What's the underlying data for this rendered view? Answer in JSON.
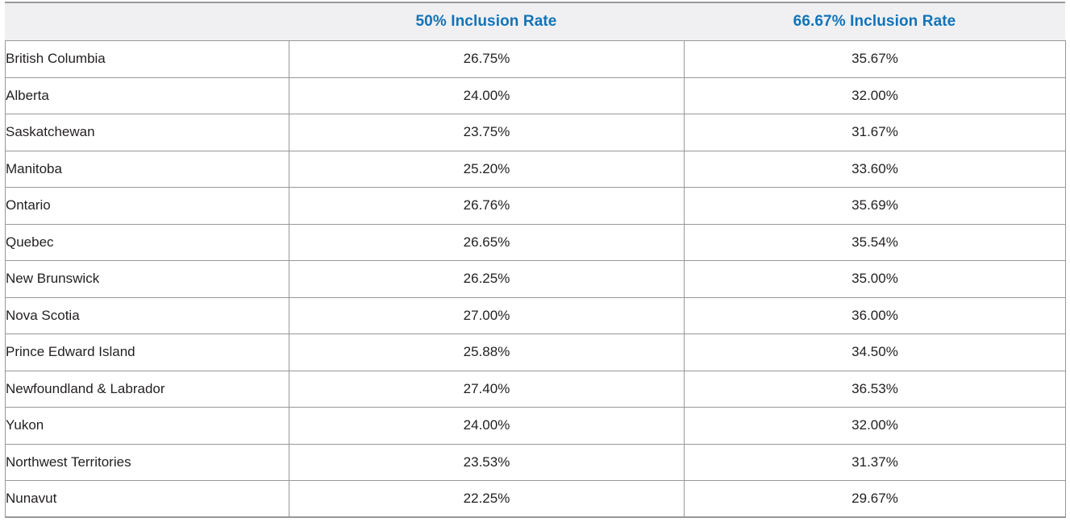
{
  "colors": {
    "accent_blue": "#1173b9",
    "border_gray": "#98989b",
    "header_background": "#f0f0f2",
    "body_text": "#231f20"
  },
  "table": {
    "header": {
      "region_label": "",
      "col_50": "50% Inclusion Rate",
      "col_6667": "66.67% Inclusion Rate"
    },
    "rows": [
      {
        "region": "British Columbia",
        "rate_50": "26.75%",
        "rate_6667": "35.67%"
      },
      {
        "region": "Alberta",
        "rate_50": "24.00%",
        "rate_6667": "32.00%"
      },
      {
        "region": "Saskatchewan",
        "rate_50": "23.75%",
        "rate_6667": "31.67%"
      },
      {
        "region": "Manitoba",
        "rate_50": "25.20%",
        "rate_6667": "33.60%"
      },
      {
        "region": "Ontario",
        "rate_50": "26.76%",
        "rate_6667": "35.69%"
      },
      {
        "region": "Quebec",
        "rate_50": "26.65%",
        "rate_6667": "35.54%"
      },
      {
        "region": "New Brunswick",
        "rate_50": "26.25%",
        "rate_6667": "35.00%"
      },
      {
        "region": "Nova Scotia",
        "rate_50": "27.00%",
        "rate_6667": "36.00%"
      },
      {
        "region": "Prince Edward Island",
        "rate_50": "25.88%",
        "rate_6667": "34.50%"
      },
      {
        "region": "Newfoundland & Labrador",
        "rate_50": "27.40%",
        "rate_6667": "36.53%"
      },
      {
        "region": "Yukon",
        "rate_50": "24.00%",
        "rate_6667": "32.00%"
      },
      {
        "region": "Northwest Territories",
        "rate_50": "23.53%",
        "rate_6667": "31.37%"
      },
      {
        "region": "Nunavut",
        "rate_50": "22.25%",
        "rate_6667": "29.67%"
      }
    ]
  },
  "chart_data": {
    "type": "table",
    "title": "",
    "categories": [
      "British Columbia",
      "Alberta",
      "Saskatchewan",
      "Manitoba",
      "Ontario",
      "Quebec",
      "New Brunswick",
      "Nova Scotia",
      "Prince Edward Island",
      "Newfoundland & Labrador",
      "Yukon",
      "Northwest Territories",
      "Nunavut"
    ],
    "series": [
      {
        "name": "50% Inclusion Rate",
        "values": [
          26.75,
          24.0,
          23.75,
          25.2,
          26.76,
          26.65,
          26.25,
          27.0,
          25.88,
          27.4,
          24.0,
          23.53,
          22.25
        ]
      },
      {
        "name": "66.67% Inclusion Rate",
        "values": [
          35.67,
          32.0,
          31.67,
          33.6,
          35.69,
          35.54,
          35.0,
          36.0,
          34.5,
          36.53,
          32.0,
          31.37,
          29.67
        ]
      }
    ]
  }
}
